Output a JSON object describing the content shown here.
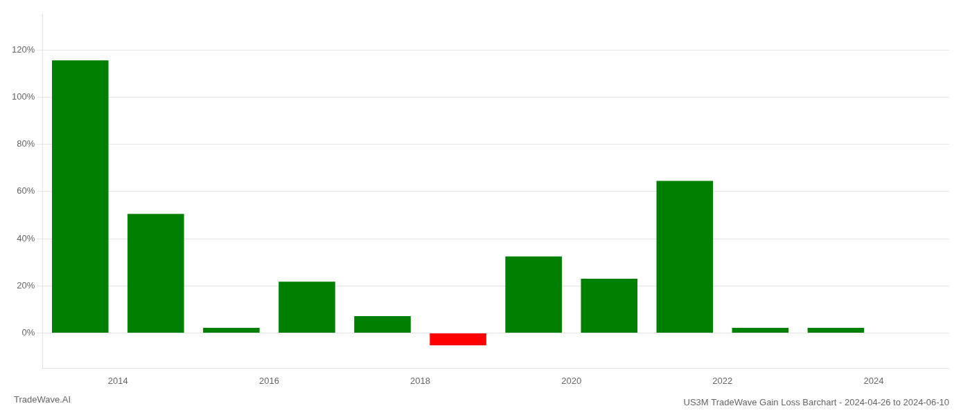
{
  "chart_data": {
    "type": "bar",
    "title": "US3M TradeWave Gain Loss Barchart - 2024-04-26 to 2024-06-10",
    "annotations": [
      {
        "text": "TradeWave.AI"
      }
    ],
    "x": [
      2013.5,
      2014.5,
      2015.5,
      2016.5,
      2017.5,
      2018.5,
      2019.5,
      2020.5,
      2021.5,
      2022.5,
      2023.5
    ],
    "values": [
      1.155,
      0.505,
      0.022,
      0.218,
      0.072,
      -0.052,
      0.325,
      0.23,
      0.645,
      0.022,
      0.022
    ],
    "colors": [
      "#008000",
      "#008000",
      "#008000",
      "#008000",
      "#008000",
      "#ff0000",
      "#008000",
      "#008000",
      "#008000",
      "#008000",
      "#008000"
    ],
    "xlim": [
      2013.0,
      2025.0
    ],
    "xticks": [
      2014,
      2016,
      2018,
      2020,
      2022,
      2024
    ],
    "ylim": [
      -0.15,
      1.35
    ],
    "yticks": [
      {
        "value": 0.0,
        "label": "0%"
      },
      {
        "value": 0.2,
        "label": "20%"
      },
      {
        "value": 0.4,
        "label": "40%"
      },
      {
        "value": 0.6,
        "label": "60%"
      },
      {
        "value": 0.8,
        "label": "80%"
      },
      {
        "value": 1.0,
        "label": "100%"
      },
      {
        "value": 1.2,
        "label": "120%"
      }
    ],
    "grid": "y"
  }
}
